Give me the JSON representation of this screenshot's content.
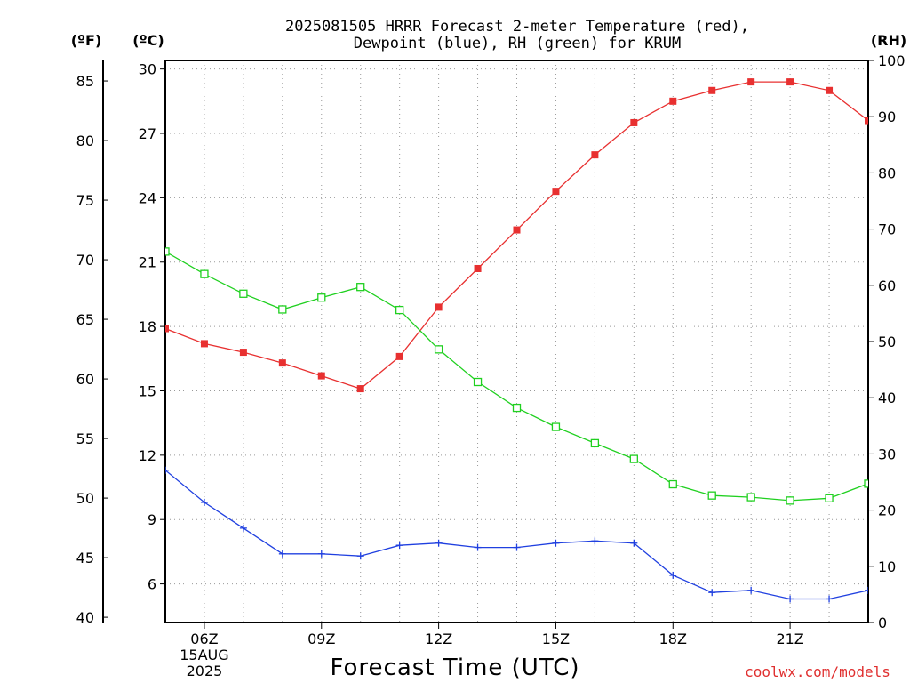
{
  "chart_data": {
    "type": "line",
    "title_line1": "2025081505 HRRR Forecast 2-meter Temperature (red),",
    "title_line2": "Dewpoint (blue), RH (green) for KRUM",
    "xlabel": "Forecast Time (UTC)",
    "credit": "coolwx.com/models",
    "units": {
      "fahrenheit": "(ºF)",
      "celsius": "(ºC)",
      "rh": "(RH)"
    },
    "x_hours": [
      5,
      6,
      7,
      8,
      9,
      10,
      11,
      12,
      13,
      14,
      15,
      16,
      17,
      18,
      19,
      20,
      21,
      22,
      23
    ],
    "x_ticks": [
      {
        "hour": 6,
        "label": "06Z",
        "sub1": "15AUG",
        "sub2": "2025"
      },
      {
        "hour": 9,
        "label": "09Z"
      },
      {
        "hour": 12,
        "label": "12Z"
      },
      {
        "hour": 15,
        "label": "15Z"
      },
      {
        "hour": 18,
        "label": "18Z"
      },
      {
        "hour": 21,
        "label": "21Z"
      }
    ],
    "xlim": [
      5,
      23
    ],
    "ylim_celsius": [
      4.2,
      30.4
    ],
    "celsius_ticks": [
      "6",
      "9",
      "12",
      "15",
      "18",
      "21",
      "24",
      "27",
      "30"
    ],
    "fahrenheit_ticks": [
      "40",
      "45",
      "50",
      "55",
      "60",
      "65",
      "70",
      "75",
      "80",
      "85"
    ],
    "ylim_rh": [
      0,
      100
    ],
    "rh_ticks": [
      "0",
      "10",
      "20",
      "30",
      "40",
      "50",
      "60",
      "70",
      "80",
      "90",
      "100"
    ],
    "grid": true,
    "series": [
      {
        "name": "Temperature",
        "axis": "celsius",
        "color": "#e83030",
        "marker": "filled-square",
        "values": [
          17.9,
          17.2,
          16.8,
          16.3,
          15.7,
          15.1,
          16.6,
          18.9,
          20.7,
          22.5,
          24.3,
          26.0,
          27.5,
          28.5,
          29.0,
          29.4,
          29.4,
          29.0,
          27.6
        ]
      },
      {
        "name": "Dewpoint",
        "axis": "celsius",
        "color": "#2040e0",
        "marker": "plus",
        "values": [
          11.3,
          9.8,
          8.6,
          7.4,
          7.4,
          7.3,
          7.8,
          7.9,
          7.7,
          7.7,
          7.9,
          8.0,
          7.9,
          6.4,
          5.6,
          5.7,
          5.3,
          5.3,
          5.7
        ]
      },
      {
        "name": "RH",
        "axis": "rh",
        "color": "#20d020",
        "marker": "open-square",
        "values": [
          66,
          62,
          58.5,
          55.7,
          57.8,
          59.7,
          55.6,
          48.6,
          42.8,
          38.2,
          34.8,
          31.9,
          29.1,
          24.6,
          22.6,
          22.3,
          21.7,
          22.1,
          24.7
        ]
      }
    ]
  }
}
